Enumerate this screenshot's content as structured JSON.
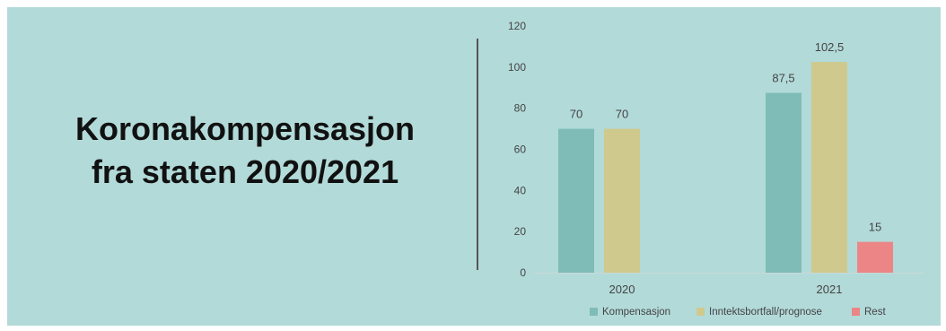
{
  "title": {
    "line1": "Koronakompensasjon",
    "line2": "fra staten 2020/2021"
  },
  "chart_data": {
    "type": "bar",
    "title": "",
    "xlabel": "",
    "ylabel": "",
    "categories": [
      "2020",
      "2021"
    ],
    "series": [
      {
        "name": "Kompensasjon",
        "color": "#7fbcb7",
        "values": [
          70,
          87.5
        ]
      },
      {
        "name": "Inntektsbortfall/prognose",
        "color": "#d0c98d",
        "values": [
          70,
          102.5
        ]
      },
      {
        "name": "Rest",
        "color": "#ec8585",
        "values": [
          null,
          15
        ]
      }
    ],
    "data_labels": [
      [
        "70",
        "87,5"
      ],
      [
        "70",
        "102,5"
      ],
      [
        "",
        "15"
      ]
    ],
    "ylim": [
      0,
      120
    ],
    "yticks": [
      0,
      20,
      40,
      60,
      80,
      100,
      120
    ],
    "grid": false,
    "legend": "bottom"
  }
}
